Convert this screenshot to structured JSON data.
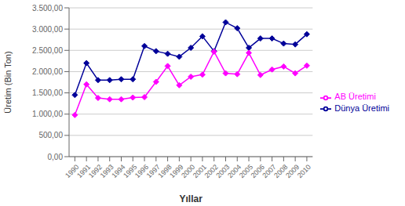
{
  "chart_data": {
    "type": "line",
    "xlabel": "Yıllar",
    "ylabel": "Üretim (Bin Ton)",
    "x": [
      1990,
      1991,
      1992,
      1993,
      1994,
      1995,
      1996,
      1997,
      1998,
      1999,
      2000,
      2001,
      2002,
      2003,
      2004,
      2005,
      2006,
      2007,
      2008,
      2009,
      2010
    ],
    "series": [
      {
        "name": "Dünya Üretimi",
        "color": "#000099",
        "marker": "diamond",
        "values": [
          1450,
          2200,
          1800,
          1800,
          1820,
          1820,
          2600,
          2480,
          2420,
          2350,
          2560,
          2830,
          2480,
          3160,
          3020,
          2560,
          2780,
          2780,
          2660,
          2640,
          2880
        ]
      },
      {
        "name": "AB Üretimi",
        "color": "#FF00FF",
        "marker": "diamond",
        "values": [
          980,
          1700,
          1380,
          1350,
          1350,
          1390,
          1400,
          1760,
          2130,
          1680,
          1880,
          1930,
          2470,
          1960,
          1940,
          2440,
          1920,
          2050,
          2120,
          1960,
          2140
        ]
      }
    ],
    "xlim": [
      1989.5,
      2010.5
    ],
    "xticks": [
      1990,
      1991,
      1992,
      1993,
      1994,
      1995,
      1996,
      1997,
      1998,
      1999,
      2000,
      2001,
      2002,
      2003,
      2004,
      2005,
      2006,
      2007,
      2008,
      2009,
      2010
    ],
    "ylim": [
      0,
      3500
    ],
    "yticks": [
      {
        "value": 0,
        "label": "0,00"
      },
      {
        "value": 500,
        "label": "500,00"
      },
      {
        "value": 1000,
        "label": "1.000,00"
      },
      {
        "value": 1500,
        "label": "1.500,00"
      },
      {
        "value": 2000,
        "label": "2.000,00"
      },
      {
        "value": 2500,
        "label": "2.500,00"
      },
      {
        "value": 3000,
        "label": "3.000,00"
      },
      {
        "value": 3500,
        "label": "3.500,00"
      }
    ],
    "grid": "y",
    "legend": "right"
  }
}
